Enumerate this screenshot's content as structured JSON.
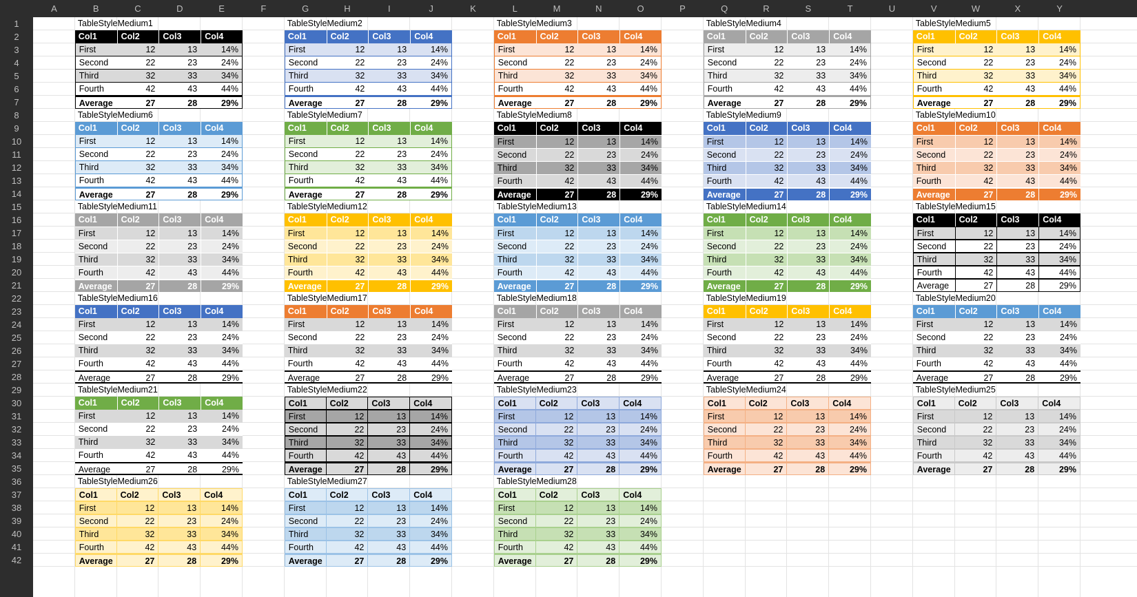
{
  "columns": [
    "A",
    "B",
    "C",
    "D",
    "E",
    "F",
    "G",
    "H",
    "I",
    "J",
    "K",
    "L",
    "M",
    "N",
    "O",
    "P",
    "Q",
    "R",
    "S",
    "T",
    "U",
    "V",
    "W",
    "X",
    "Y"
  ],
  "rows": [
    "1",
    "2",
    "3",
    "4",
    "5",
    "6",
    "7",
    "8",
    "9",
    "10",
    "11",
    "12",
    "13",
    "14",
    "15",
    "16",
    "17",
    "18",
    "19",
    "20",
    "21",
    "22",
    "23",
    "24",
    "25",
    "26",
    "27",
    "28",
    "29",
    "30",
    "31",
    "32",
    "33",
    "34",
    "35",
    "36",
    "37",
    "38",
    "39",
    "40",
    "41",
    "42"
  ],
  "table": {
    "headers": [
      "Col1",
      "Col2",
      "Col3",
      "Col4"
    ],
    "rows": [
      [
        "First",
        "12",
        "13",
        "14%"
      ],
      [
        "Second",
        "22",
        "23",
        "24%"
      ],
      [
        "Third",
        "32",
        "33",
        "34%"
      ],
      [
        "Fourth",
        "42",
        "43",
        "44%"
      ],
      [
        "Average",
        "27",
        "28",
        "29%"
      ]
    ]
  },
  "styles": [
    {
      "name": "TableStyleMedium1",
      "accent": "#000000",
      "light": "#d9d9d9",
      "family": "m1"
    },
    {
      "name": "TableStyleMedium2",
      "accent": "#4472c4",
      "light": "#d9e1f2",
      "family": "m1"
    },
    {
      "name": "TableStyleMedium3",
      "accent": "#ed7d31",
      "light": "#fce4d6",
      "family": "m1"
    },
    {
      "name": "TableStyleMedium4",
      "accent": "#a5a5a5",
      "light": "#ededed",
      "family": "m1"
    },
    {
      "name": "TableStyleMedium5",
      "accent": "#ffc000",
      "light": "#fff2cc",
      "family": "m1"
    },
    {
      "name": "TableStyleMedium6",
      "accent": "#5b9bd5",
      "light": "#ddebf7",
      "family": "m1"
    },
    {
      "name": "TableStyleMedium7",
      "accent": "#70ad47",
      "light": "#e2efda",
      "family": "m1"
    },
    {
      "name": "TableStyleMedium8",
      "accent": "#000000",
      "light": "#a6a6a6",
      "light2": "#d9d9d9",
      "family": "m2"
    },
    {
      "name": "TableStyleMedium9",
      "accent": "#4472c4",
      "light": "#b4c6e7",
      "light2": "#d9e1f2",
      "family": "m2"
    },
    {
      "name": "TableStyleMedium10",
      "accent": "#ed7d31",
      "light": "#f8cbad",
      "light2": "#fce4d6",
      "family": "m2"
    },
    {
      "name": "TableStyleMedium11",
      "accent": "#a5a5a5",
      "light": "#d9d9d9",
      "light2": "#ededed",
      "family": "m2"
    },
    {
      "name": "TableStyleMedium12",
      "accent": "#ffc000",
      "light": "#ffe699",
      "light2": "#fff2cc",
      "family": "m2"
    },
    {
      "name": "TableStyleMedium13",
      "accent": "#5b9bd5",
      "light": "#bdd7ee",
      "light2": "#ddebf7",
      "family": "m2"
    },
    {
      "name": "TableStyleMedium14",
      "accent": "#70ad47",
      "light": "#c6e0b4",
      "light2": "#e2efda",
      "family": "m2"
    },
    {
      "name": "TableStyleMedium15",
      "accent": "#000000",
      "light": "#d9d9d9",
      "family": "m3"
    },
    {
      "name": "TableStyleMedium16",
      "accent": "#4472c4",
      "light": "#d9d9d9",
      "family": "m4"
    },
    {
      "name": "TableStyleMedium17",
      "accent": "#ed7d31",
      "light": "#d9d9d9",
      "family": "m4"
    },
    {
      "name": "TableStyleMedium18",
      "accent": "#a5a5a5",
      "light": "#d9d9d9",
      "family": "m4"
    },
    {
      "name": "TableStyleMedium19",
      "accent": "#ffc000",
      "light": "#d9d9d9",
      "family": "m4"
    },
    {
      "name": "TableStyleMedium20",
      "accent": "#5b9bd5",
      "light": "#d9d9d9",
      "family": "m4"
    },
    {
      "name": "TableStyleMedium21",
      "accent": "#70ad47",
      "light": "#d9d9d9",
      "family": "m4"
    },
    {
      "name": "TableStyleMedium22",
      "accent": "#d9d9d9",
      "light": "#a6a6a6",
      "border": "#000000",
      "family": "m5"
    },
    {
      "name": "TableStyleMedium23",
      "accent": "#d9e1f2",
      "light": "#b4c6e7",
      "border": "#8ea9db",
      "family": "m5"
    },
    {
      "name": "TableStyleMedium24",
      "accent": "#fce4d6",
      "light": "#f8cbad",
      "border": "#f4b084",
      "family": "m5"
    },
    {
      "name": "TableStyleMedium25",
      "accent": "#ededed",
      "light": "#d9d9d9",
      "border": "#c9c9c9",
      "family": "m5"
    },
    {
      "name": "TableStyleMedium26",
      "accent": "#fff2cc",
      "light": "#ffe699",
      "border": "#ffd966",
      "family": "m5"
    },
    {
      "name": "TableStyleMedium27",
      "accent": "#ddebf7",
      "light": "#bdd7ee",
      "border": "#9bc2e6",
      "family": "m5"
    },
    {
      "name": "TableStyleMedium28",
      "accent": "#e2efda",
      "light": "#c6e0b4",
      "border": "#a9d08e",
      "family": "m5"
    }
  ]
}
